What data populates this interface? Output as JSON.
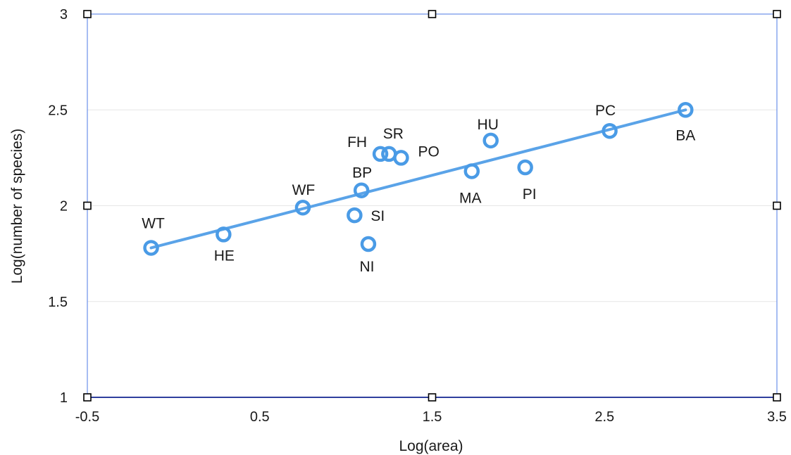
{
  "chart_data": {
    "type": "scatter",
    "xlabel": "Log(area)",
    "ylabel": "Log(number of species)",
    "xlim": [
      -0.5,
      3.5
    ],
    "ylim": [
      1,
      3
    ],
    "xticks": [
      "-0.5",
      "0.5",
      "1.5",
      "2.5",
      "3.5"
    ],
    "xtick_values": [
      -0.5,
      0.5,
      1.5,
      2.5,
      3.5
    ],
    "yticks": [
      "1",
      "1.5",
      "2",
      "2.5",
      "3"
    ],
    "ytick_values": [
      1,
      1.5,
      2,
      2.5,
      3
    ],
    "grid": true,
    "marker_color": "#4a9be6",
    "trendline_color": "#5aa3e8",
    "points": [
      {
        "label": "WT",
        "x": -0.13,
        "y": 1.78
      },
      {
        "label": "HE",
        "x": 0.29,
        "y": 1.85
      },
      {
        "label": "WF",
        "x": 0.75,
        "y": 1.99
      },
      {
        "label": "BP",
        "x": 1.09,
        "y": 2.08
      },
      {
        "label": "SI",
        "x": 1.05,
        "y": 1.95
      },
      {
        "label": "NI",
        "x": 1.13,
        "y": 1.8
      },
      {
        "label": "FH",
        "x": 1.2,
        "y": 2.27
      },
      {
        "label": "SR",
        "x": 1.25,
        "y": 2.27
      },
      {
        "label": "PO",
        "x": 1.32,
        "y": 2.25
      },
      {
        "label": "MA",
        "x": 1.73,
        "y": 2.18
      },
      {
        "label": "HU",
        "x": 1.84,
        "y": 2.34
      },
      {
        "label": "PI",
        "x": 2.04,
        "y": 2.2
      },
      {
        "label": "PC",
        "x": 2.53,
        "y": 2.39
      },
      {
        "label": "BA",
        "x": 2.97,
        "y": 2.5
      }
    ],
    "trendline": {
      "x": [
        -0.13,
        2.97
      ],
      "y": [
        1.78,
        2.5
      ]
    }
  }
}
